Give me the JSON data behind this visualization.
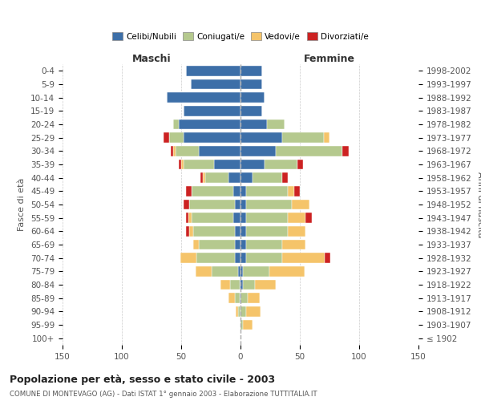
{
  "age_groups": [
    "0-4",
    "5-9",
    "10-14",
    "15-19",
    "20-24",
    "25-29",
    "30-34",
    "35-39",
    "40-44",
    "45-49",
    "50-54",
    "55-59",
    "60-64",
    "65-69",
    "70-74",
    "75-79",
    "80-84",
    "85-89",
    "90-94",
    "95-99",
    "100+"
  ],
  "birth_years": [
    "1998-2002",
    "1993-1997",
    "1988-1992",
    "1983-1987",
    "1978-1982",
    "1973-1977",
    "1968-1972",
    "1963-1967",
    "1958-1962",
    "1953-1957",
    "1948-1952",
    "1943-1947",
    "1938-1942",
    "1933-1937",
    "1928-1932",
    "1923-1927",
    "1918-1922",
    "1913-1917",
    "1908-1912",
    "1903-1907",
    "≤ 1902"
  ],
  "males_celibi": [
    46,
    42,
    62,
    48,
    52,
    48,
    35,
    22,
    10,
    6,
    5,
    6,
    5,
    5,
    5,
    2,
    1,
    1,
    0,
    0,
    0
  ],
  "males_coniugati": [
    0,
    0,
    0,
    0,
    5,
    12,
    20,
    26,
    20,
    35,
    38,
    35,
    35,
    30,
    32,
    22,
    8,
    4,
    2,
    0,
    0
  ],
  "males_vedovi": [
    0,
    0,
    0,
    0,
    0,
    0,
    2,
    2,
    2,
    0,
    0,
    3,
    3,
    5,
    14,
    14,
    8,
    5,
    2,
    0,
    0
  ],
  "males_divorziati": [
    0,
    0,
    0,
    0,
    0,
    5,
    2,
    2,
    2,
    5,
    5,
    2,
    3,
    0,
    0,
    0,
    0,
    0,
    0,
    0,
    0
  ],
  "females_nubili": [
    18,
    18,
    20,
    18,
    22,
    35,
    30,
    20,
    10,
    5,
    5,
    5,
    5,
    5,
    5,
    2,
    2,
    0,
    0,
    0,
    0
  ],
  "females_coniugate": [
    0,
    0,
    0,
    0,
    15,
    35,
    56,
    28,
    25,
    35,
    38,
    35,
    35,
    30,
    30,
    22,
    10,
    6,
    5,
    2,
    0
  ],
  "females_vedove": [
    0,
    0,
    0,
    0,
    0,
    5,
    0,
    0,
    0,
    5,
    15,
    15,
    15,
    20,
    36,
    30,
    18,
    10,
    12,
    8,
    0
  ],
  "females_divorziate": [
    0,
    0,
    0,
    0,
    0,
    0,
    5,
    5,
    5,
    5,
    0,
    5,
    0,
    0,
    5,
    0,
    0,
    0,
    0,
    0,
    0
  ],
  "colors": {
    "celibi": "#3d6fa8",
    "coniugati": "#b5c98e",
    "vedovi": "#f5c46a",
    "divorziati": "#cc2222"
  },
  "xlim": 150,
  "title": "Popolazione per età, sesso e stato civile - 2003",
  "subtitle": "COMUNE DI MONTEVAGO (AG) - Dati ISTAT 1° gennaio 2003 - Elaborazione TUTTITALIA.IT",
  "ylabel_left": "Fasce di età",
  "ylabel_right": "Anni di nascita",
  "xlabel_left": "Maschi",
  "xlabel_right": "Femmine",
  "legend_labels": [
    "Celibi/Nubili",
    "Coniugati/e",
    "Vedovi/e",
    "Divorziati/e"
  ],
  "xticks": [
    -150,
    -100,
    -50,
    0,
    50,
    100,
    150
  ]
}
